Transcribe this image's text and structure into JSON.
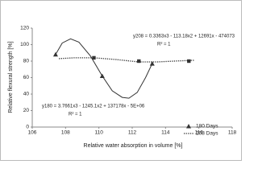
{
  "chart_data": {
    "type": "scatter",
    "x_label": "Relative water absorption in volume [%]",
    "y_label": "Relative flexural strength [%]",
    "xlim": [
      106,
      118
    ],
    "xticks": [
      106,
      108,
      110,
      112,
      114,
      116,
      118
    ],
    "ylim": [
      0,
      120
    ],
    "yticks": [
      0,
      20,
      40,
      60,
      80,
      100,
      120
    ],
    "legend": "lower right",
    "annotations": [
      "y208 = 0.3363x3 - 113.18x2 + 12691x - 474073",
      "R² = 1",
      "y180 = 3.7661x3 - 1245.1x2 + 137178x - 5E+06",
      "R² = 1"
    ],
    "series": [
      {
        "name": "180 Days",
        "color": "#333333",
        "marker": "triangle",
        "line": "solid",
        "x": [
          107.4,
          110.2,
          113.2
        ],
        "values": [
          88,
          62,
          77
        ],
        "trend_x": [
          107.4,
          107.8,
          108.3,
          108.8,
          109.5,
          110.2,
          110.8,
          111.4,
          111.8,
          112.3,
          112.8,
          113.2
        ],
        "trend_values": [
          88,
          102,
          107,
          103,
          86,
          62,
          44,
          36,
          35,
          42,
          60,
          77
        ]
      },
      {
        "name": "208 Days",
        "color": "#333333",
        "marker": "square",
        "line": "dotted",
        "x": [
          109.7,
          112.4,
          115.4
        ],
        "values": [
          84,
          80,
          80
        ],
        "trend_x": [
          107.6,
          108.5,
          109.7,
          111,
          112.4,
          113.5,
          114.5,
          115.7
        ],
        "trend_values": [
          83,
          84,
          84,
          82,
          79,
          79,
          80,
          81
        ]
      }
    ]
  }
}
